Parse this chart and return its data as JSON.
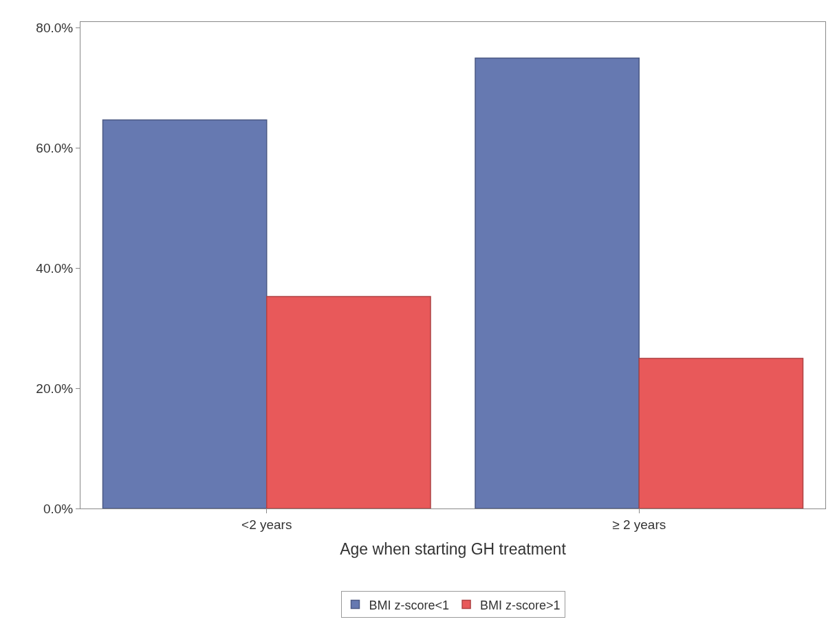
{
  "chart_data": {
    "type": "bar",
    "xlabel": "Age when starting GH treatment",
    "categories": [
      "<2 years",
      "≥ 2 years"
    ],
    "series": [
      {
        "name": "BMI z-score<1",
        "color": "#6679b1",
        "values": [
          64.7,
          75.0
        ]
      },
      {
        "name": "BMI z-score>1",
        "color": "#e8595a",
        "values": [
          35.3,
          25.0
        ]
      }
    ],
    "ylim": [
      0,
      81
    ],
    "yticks": [
      {
        "value": 0,
        "label": "0.0%"
      },
      {
        "value": 20,
        "label": "20.0%"
      },
      {
        "value": 40,
        "label": "40.0%"
      },
      {
        "value": 60,
        "label": "60.0%"
      },
      {
        "value": 80,
        "label": "80.0%"
      }
    ],
    "legend": "bottom"
  }
}
